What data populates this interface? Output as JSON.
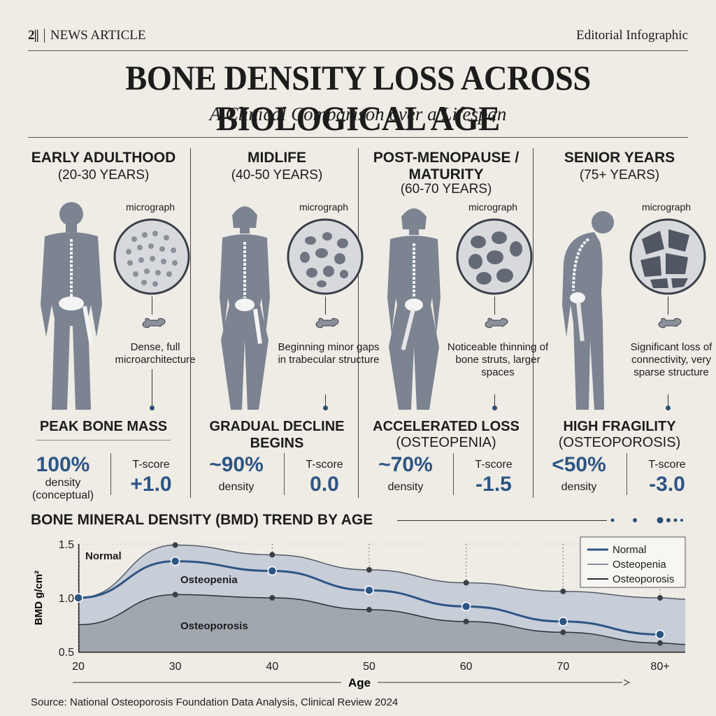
{
  "header": {
    "logo": "2||",
    "section": "NEWS ARTICLE",
    "label": "Editorial Infographic",
    "title": "BONE DENSITY LOSS ACROSS BIOLOGICAL AGE",
    "subtitle": "A Clinical Comparison over a Lifespan"
  },
  "stages": [
    {
      "title": "EARLY ADULTHOOD",
      "range": "(20-30 YEARS)",
      "micrograph_label": "micrograph",
      "description": "Dense, full microarchitecture",
      "stage": "PEAK BONE MASS",
      "stage_sub": "",
      "density": "100%",
      "density_label": "density (conceptual)",
      "tscore_label": "T-score",
      "tscore": "+1.0"
    },
    {
      "title": "MIDLIFE",
      "range": "(40-50 YEARS)",
      "micrograph_label": "micrograph",
      "description": "Beginning minor gaps in trabecular structure",
      "stage": "GRADUAL DECLINE BEGINS",
      "stage_sub": "",
      "density": "~90%",
      "density_label": "density",
      "tscore_label": "T-score",
      "tscore": "0.0"
    },
    {
      "title": "POST-MENOPAUSE / MATURITY",
      "range": "(60-70 YEARS)",
      "micrograph_label": "micrograph",
      "description": "Noticeable thinning of bone struts, larger spaces",
      "stage": "ACCELERATED LOSS",
      "stage_sub": "(OSTEOPENIA)",
      "density": "~70%",
      "density_label": "density",
      "tscore_label": "T-score",
      "tscore": "-1.5"
    },
    {
      "title": "SENIOR YEARS",
      "range": "(75+ YEARS)",
      "micrograph_label": "micrograph",
      "description": "Significant loss of connectivity, very sparse structure",
      "stage": "HIGH FRAGILITY",
      "stage_sub": "(OSTEOPOROSIS)",
      "density": "<50%",
      "density_label": "density",
      "tscore_label": "T-score",
      "tscore": "-3.0"
    }
  ],
  "trend_title": "BONE MINERAL DENSITY (BMD) TREND BY AGE",
  "chart_data": {
    "type": "area",
    "x": [
      20,
      30,
      40,
      50,
      60,
      70,
      80
    ],
    "xticks": [
      "20",
      "30",
      "40",
      "50",
      "60",
      "70",
      "80+"
    ],
    "yticks": [
      "0.5",
      "1.0",
      "1.5"
    ],
    "xlabel": "Age",
    "ylabel": "BMD g/cm²",
    "ylim": [
      0.5,
      1.5
    ],
    "region_labels": [
      "Normal",
      "Osteopenia",
      "Osteoporosis"
    ],
    "series": [
      {
        "name": "Normal",
        "values": [
          1.0,
          1.34,
          1.25,
          1.07,
          0.92,
          0.78,
          0.66
        ],
        "color": "#2d5584"
      },
      {
        "name": "Osteopenia",
        "values": [
          1.0,
          1.49,
          1.4,
          1.26,
          1.14,
          1.06,
          1.0
        ],
        "color": "#8a9099"
      },
      {
        "name": "Osteoporosis",
        "values": [
          0.75,
          1.03,
          1.0,
          0.89,
          0.78,
          0.68,
          0.58
        ],
        "color": "#2b2f36"
      }
    ],
    "legend_position": "top-right",
    "grid": true
  },
  "source": "Source: National Osteoporosis Foundation Data Analysis, Clinical Review 2024"
}
